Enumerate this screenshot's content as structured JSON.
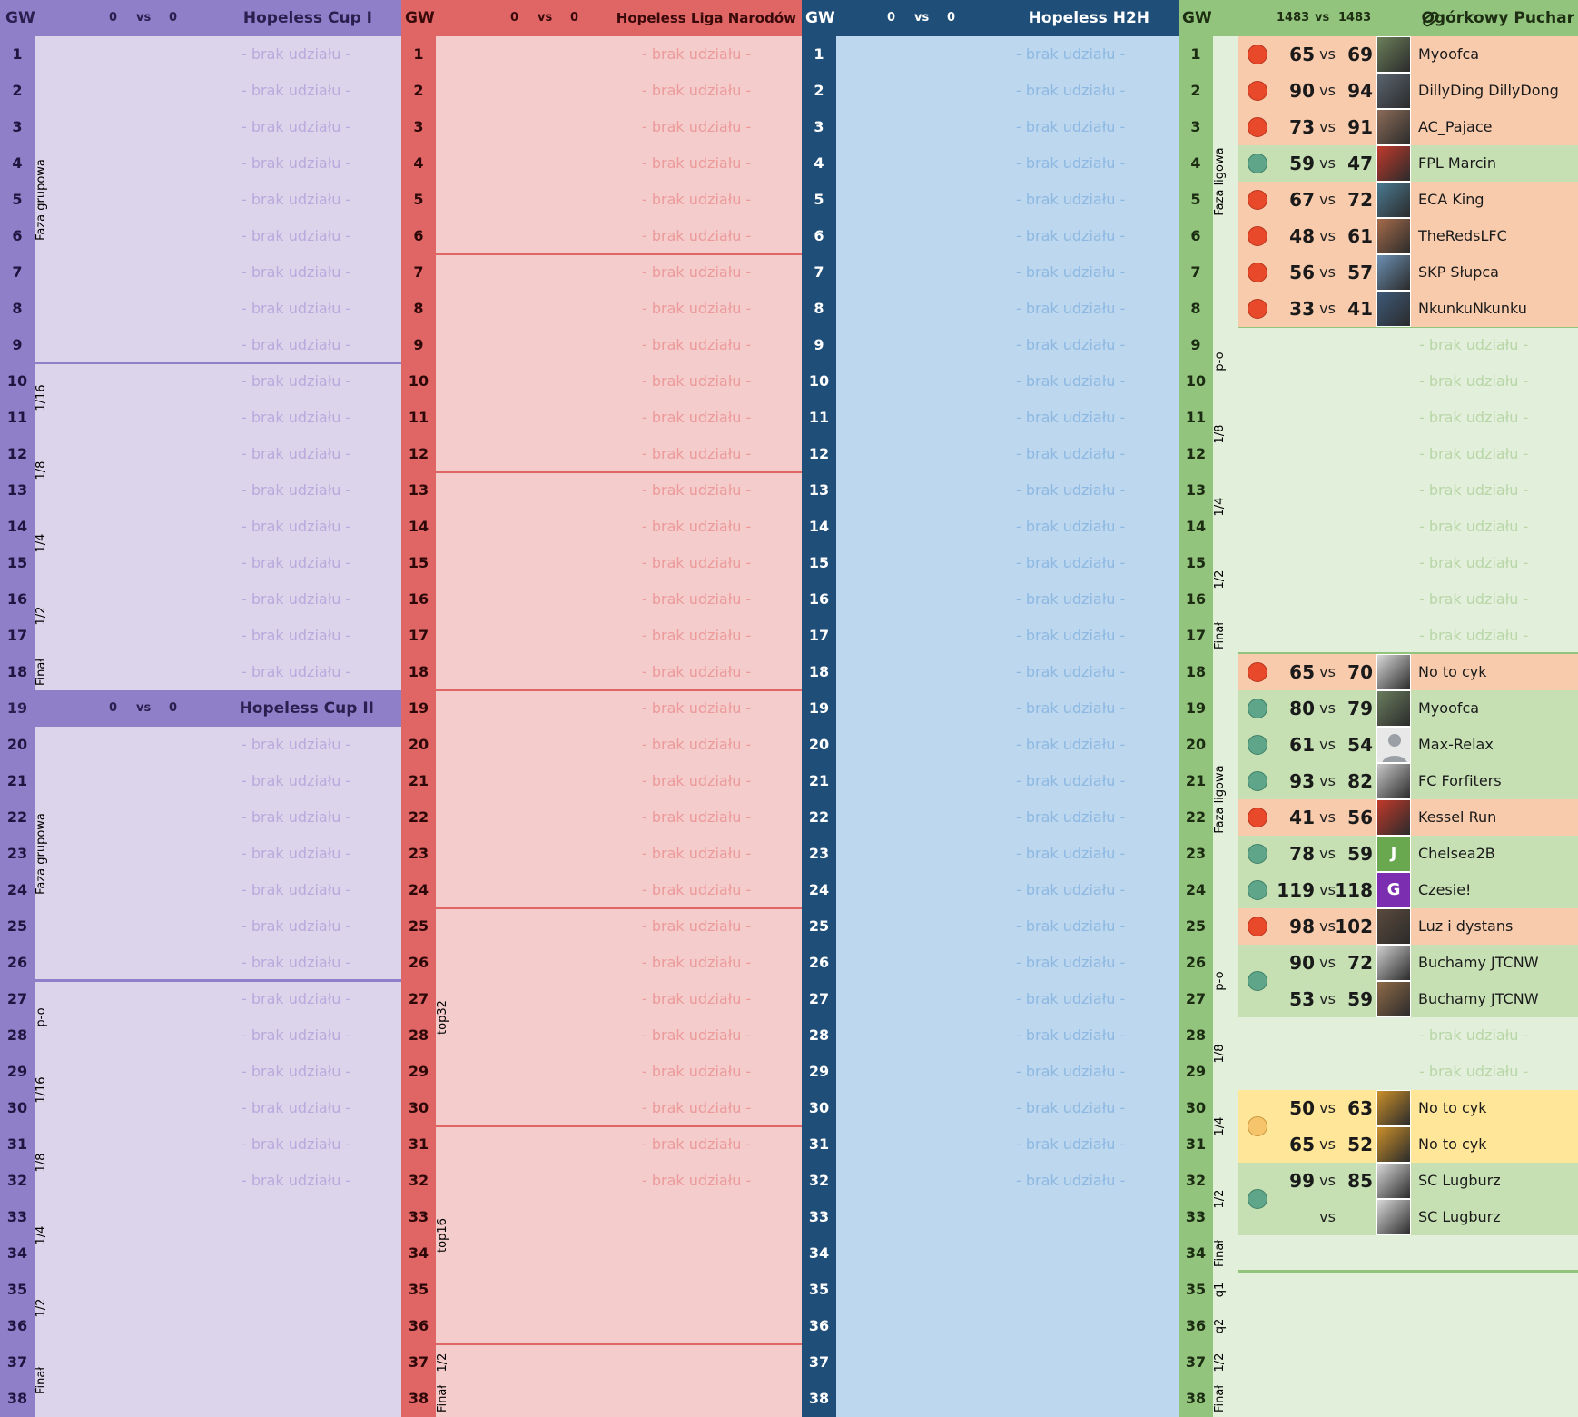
{
  "gw_label": "GW",
  "placeholder": "- brak udziału -",
  "vs": "vs",
  "panels": {
    "cup1": {
      "score_a": "0",
      "score_b": "0",
      "title": "Hopeless Cup I"
    },
    "cup2": {
      "score_a": "0",
      "score_b": "0",
      "title": "Hopeless Cup II"
    },
    "liga": {
      "score_a": "0",
      "score_b": "0",
      "title": "Hopeless Liga Narodów"
    },
    "h2h": {
      "score_a": "0",
      "score_b": "0",
      "title": "Hopeless H2H"
    },
    "ogorek": {
      "score_a": "1483",
      "score_b": "1483",
      "title": "Ogórkowy Puchar",
      "icon": "pickle-icon"
    }
  },
  "phases": {
    "cup1": [
      "Faza grupowa",
      "1/16",
      "1/8",
      "1/4",
      "1/2",
      "Finał"
    ],
    "cup2": [
      "Faza grupowa",
      "p-o",
      "1/16",
      "1/8",
      "1/4",
      "1/2",
      "Finał"
    ],
    "liga": [
      "top32",
      "top16",
      "1/2",
      "Finał"
    ],
    "ogorek": [
      "Faza ligowa",
      "p-o",
      "1/8",
      "1/4",
      "1/2",
      "Finał",
      "Faza ligowa",
      "p-o",
      "1/8",
      "1/4",
      "1/2",
      "Finał",
      "q1",
      "q2",
      "1/2",
      "Finał"
    ]
  },
  "ogorek_matches": [
    {
      "gw": 1,
      "my": "65",
      "opp": "69",
      "result": "loss",
      "name": "Myoofca",
      "avatar": "photo"
    },
    {
      "gw": 2,
      "my": "90",
      "opp": "94",
      "result": "loss",
      "name": "DillyDing DillyDong",
      "avatar": "photo"
    },
    {
      "gw": 3,
      "my": "73",
      "opp": "91",
      "result": "loss",
      "name": "AC_Pajace",
      "avatar": "photo"
    },
    {
      "gw": 4,
      "my": "59",
      "opp": "47",
      "result": "win",
      "name": "FPL Marcin",
      "avatar": "photo"
    },
    {
      "gw": 5,
      "my": "67",
      "opp": "72",
      "result": "loss",
      "name": "ECA King",
      "avatar": "photo"
    },
    {
      "gw": 6,
      "my": "48",
      "opp": "61",
      "result": "loss",
      "name": "TheRedsLFC",
      "avatar": "photo"
    },
    {
      "gw": 7,
      "my": "56",
      "opp": "57",
      "result": "loss",
      "name": "SKP Słupca",
      "avatar": "photo"
    },
    {
      "gw": 8,
      "my": "33",
      "opp": "41",
      "result": "loss",
      "name": "NkunkuNkunku",
      "avatar": "photo"
    },
    {
      "gw": 18,
      "my": "65",
      "opp": "70",
      "result": "loss",
      "name": "No to cyk",
      "avatar": "photo"
    },
    {
      "gw": 19,
      "my": "80",
      "opp": "79",
      "result": "win",
      "name": "Myoofca",
      "avatar": "photo"
    },
    {
      "gw": 20,
      "my": "61",
      "opp": "54",
      "result": "win",
      "name": "Max-Relax",
      "avatar": "default"
    },
    {
      "gw": 21,
      "my": "93",
      "opp": "82",
      "result": "win",
      "name": "FC Forfiters",
      "avatar": "photo"
    },
    {
      "gw": 22,
      "my": "41",
      "opp": "56",
      "result": "loss",
      "name": "Kessel Run",
      "avatar": "photo"
    },
    {
      "gw": 23,
      "my": "78",
      "opp": "59",
      "result": "win",
      "name": "Chelsea2B",
      "avatar": "J"
    },
    {
      "gw": 24,
      "my": "119",
      "opp": "118",
      "result": "win",
      "name": "Czesie!",
      "avatar": "G"
    },
    {
      "gw": 25,
      "my": "98",
      "opp": "102",
      "result": "loss",
      "name": "Luz i dystans",
      "avatar": "photo"
    },
    {
      "gw": 26,
      "my": "90",
      "opp": "72",
      "result": "win",
      "name": "Buchamy JTCNW",
      "avatar": "photo"
    },
    {
      "gw": 27,
      "my": "53",
      "opp": "59",
      "result": "win",
      "name": "Buchamy JTCNW",
      "avatar": "photo"
    },
    {
      "gw": 30,
      "my": "50",
      "opp": "63",
      "result": "draw",
      "name": "No to cyk",
      "avatar": "photo"
    },
    {
      "gw": 31,
      "my": "65",
      "opp": "52",
      "result": "draw",
      "name": "No to cyk",
      "avatar": "photo"
    },
    {
      "gw": 32,
      "my": "99",
      "opp": "85",
      "result": "win",
      "name": "SC Lugburz",
      "avatar": "photo"
    },
    {
      "gw": 33,
      "my": "",
      "opp": "",
      "result": "win",
      "name": "SC Lugburz",
      "avatar": "photo"
    }
  ],
  "colors": {
    "cup": "#8f7fc9",
    "liga": "#e06666",
    "h2h": "#1f4e79",
    "ogorek": "#93c47d",
    "loss": "#f8cbad",
    "win": "#c6e0b4",
    "draw": "#ffe699",
    "avatar_J": "#6aa84f",
    "avatar_G": "#7b2fb0"
  }
}
